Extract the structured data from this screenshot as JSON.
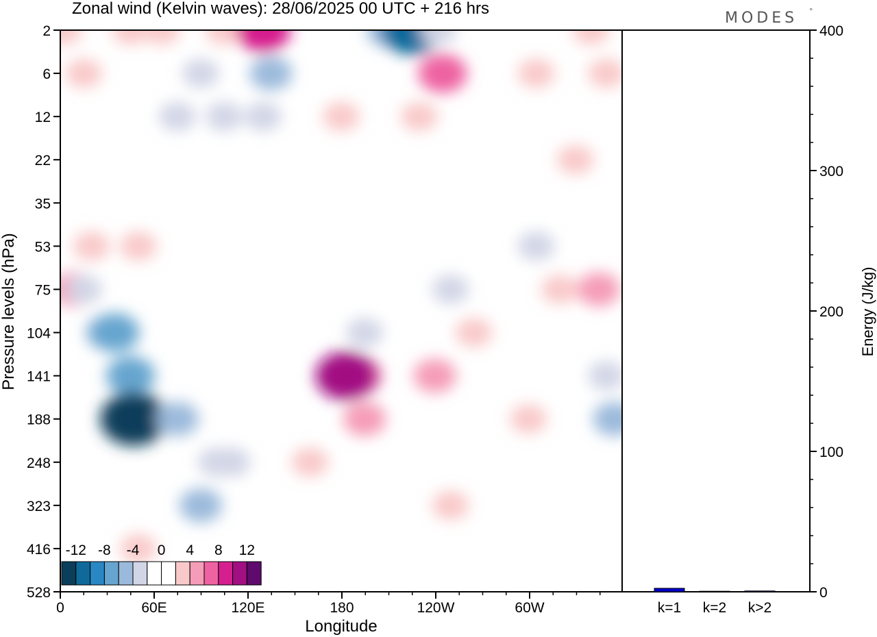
{
  "header": {
    "title": "Zonal wind (Kelvin waves):  28/06/2025  00 UTC  + 216 hrs",
    "logo": "MODES",
    "logo_mark": "°"
  },
  "chart_data": [
    {
      "type": "heatmap",
      "title": "Zonal wind (Kelvin waves):  28/06/2025  00 UTC  + 216 hrs",
      "xlabel": "Longitude",
      "ylabel": "Pressure levels (hPa)",
      "x_ticks": [
        "0",
        "60E",
        "120E",
        "180",
        "120W",
        "60W"
      ],
      "x_range_deg": [
        0,
        360
      ],
      "y_ticks": [
        "2",
        "6",
        "12",
        "22",
        "35",
        "53",
        "75",
        "104",
        "141",
        "188",
        "248",
        "323",
        "416",
        "528"
      ],
      "colorbar": {
        "tick_labels": [
          "-12",
          "-8",
          "-4",
          "0",
          "4",
          "8",
          "12"
        ],
        "levels": [
          -14,
          -12,
          -10,
          -8,
          -6,
          -4,
          -2,
          2,
          4,
          6,
          8,
          10,
          12,
          14
        ],
        "colors": [
          "#0b3e5a",
          "#0f6a9b",
          "#2987c3",
          "#66a5cf",
          "#9bbadb",
          "#d1d5e6",
          "#ffffff",
          "#ffffff",
          "#f9c9c9",
          "#f59cb8",
          "#ee62a1",
          "#d61f8e",
          "#a20f82",
          "#5f0a6d"
        ]
      },
      "cells": [
        {
          "lon": 2,
          "p": "2",
          "v": 4
        },
        {
          "lon": 15,
          "p": "6",
          "v": 4
        },
        {
          "lon": 45,
          "p": "2",
          "v": 4
        },
        {
          "lon": 65,
          "p": "2",
          "v": 4
        },
        {
          "lon": 105,
          "p": "2",
          "v": 4
        },
        {
          "lon": 130,
          "p": "2",
          "v": 10
        },
        {
          "lon": 90,
          "p": "6",
          "v": -4
        },
        {
          "lon": 75,
          "p": "12",
          "v": -4
        },
        {
          "lon": 105,
          "p": "12",
          "v": -4
        },
        {
          "lon": 130,
          "p": "12",
          "v": -4
        },
        {
          "lon": 135,
          "p": "6",
          "v": -6
        },
        {
          "lon": 210,
          "p": "2",
          "v": -6
        },
        {
          "lon": 225,
          "p": "2",
          "v": -12
        },
        {
          "lon": 242,
          "p": "2",
          "v": -4
        },
        {
          "lon": 245,
          "p": "6",
          "v": 8
        },
        {
          "lon": 230,
          "p": "12",
          "v": 4
        },
        {
          "lon": 180,
          "p": "12",
          "v": 4
        },
        {
          "lon": 305,
          "p": "6",
          "v": 4
        },
        {
          "lon": 340,
          "p": "2",
          "v": 4
        },
        {
          "lon": 330,
          "p": "22",
          "v": 4
        },
        {
          "lon": 350,
          "p": "6",
          "v": 4
        },
        {
          "lon": 20,
          "p": "53",
          "v": 4
        },
        {
          "lon": 8,
          "p": "75",
          "v": 6
        },
        {
          "lon": 50,
          "p": "53",
          "v": 4
        },
        {
          "lon": 15,
          "p": "75",
          "v": -4
        },
        {
          "lon": 30,
          "p": "104",
          "v": -6
        },
        {
          "lon": 35,
          "p": "104",
          "v": -8
        },
        {
          "lon": 45,
          "p": "141",
          "v": -8
        },
        {
          "lon": 50,
          "p": "188",
          "v": -10
        },
        {
          "lon": 47,
          "p": "188",
          "v": -14
        },
        {
          "lon": 75,
          "p": "188",
          "v": -6
        },
        {
          "lon": 100,
          "p": "248",
          "v": -4
        },
        {
          "lon": 90,
          "p": "323",
          "v": -6
        },
        {
          "lon": 110,
          "p": "248",
          "v": -4
        },
        {
          "lon": 195,
          "p": "188",
          "v": 6
        },
        {
          "lon": 190,
          "p": "141",
          "v": 8
        },
        {
          "lon": 183,
          "p": "141",
          "v": 12
        },
        {
          "lon": 240,
          "p": "141",
          "v": 6
        },
        {
          "lon": 265,
          "p": "104",
          "v": 4
        },
        {
          "lon": 320,
          "p": "75",
          "v": 4
        },
        {
          "lon": 345,
          "p": "75",
          "v": 6
        },
        {
          "lon": 250,
          "p": "323",
          "v": 4
        },
        {
          "lon": 300,
          "p": "188",
          "v": 4
        },
        {
          "lon": 50,
          "p": "416",
          "v": 4
        },
        {
          "lon": 160,
          "p": "248",
          "v": 4
        },
        {
          "lon": 305,
          "p": "53",
          "v": -4
        },
        {
          "lon": 250,
          "p": "75",
          "v": -4
        },
        {
          "lon": 195,
          "p": "104",
          "v": -4
        },
        {
          "lon": 355,
          "p": "188",
          "v": -6
        },
        {
          "lon": 350,
          "p": "141",
          "v": -4
        }
      ]
    },
    {
      "type": "bar",
      "ylabel": "Energy (J/kg)",
      "ylim": [
        0,
        400
      ],
      "y_ticks": [
        "0",
        "100",
        "200",
        "300",
        "400"
      ],
      "categories": [
        "k=1",
        "k=2",
        "k>2"
      ],
      "values": [
        2.5,
        0.4,
        0.6
      ],
      "bar_color": "#0000cc"
    }
  ]
}
